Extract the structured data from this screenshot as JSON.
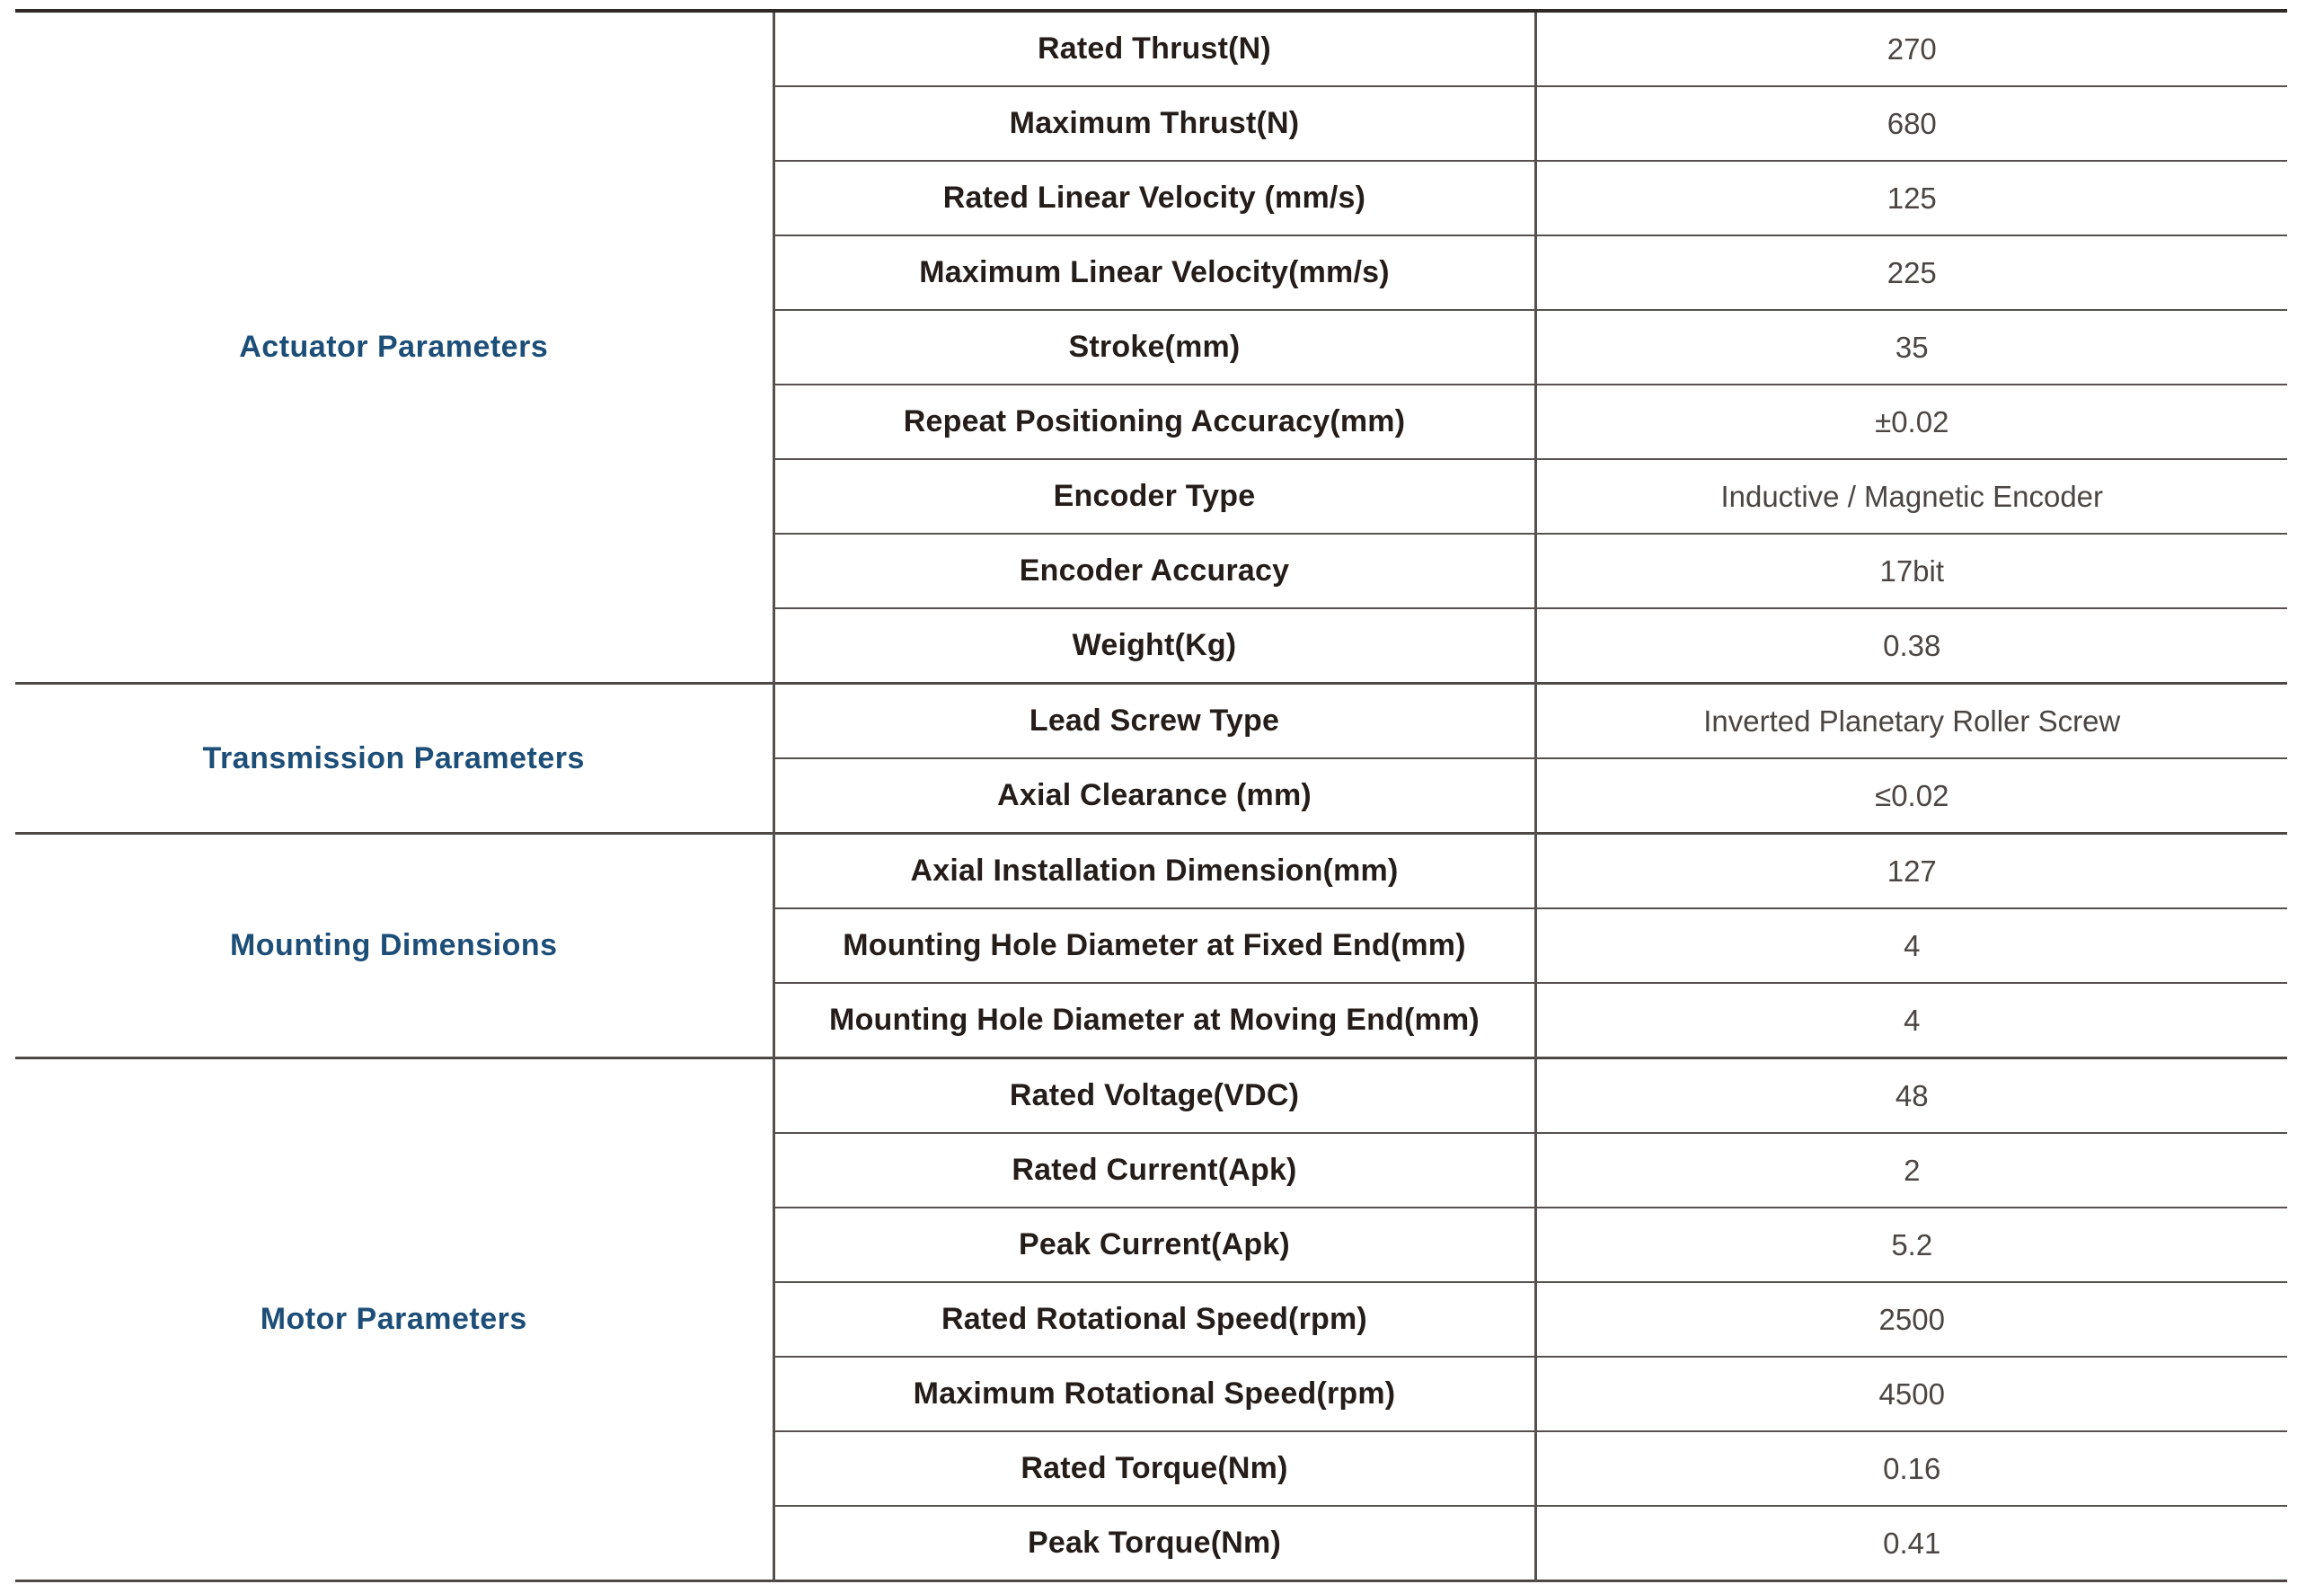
{
  "table": {
    "name": "actuator-specification-table",
    "columns": [
      "category",
      "parameter",
      "value"
    ],
    "sections": [
      {
        "category": "Actuator Parameters",
        "rows": [
          {
            "param": "Rated Thrust(N)",
            "value": "270"
          },
          {
            "param": "Maximum Thrust(N)",
            "value": "680"
          },
          {
            "param": "Rated Linear Velocity (mm/s)",
            "value": "125"
          },
          {
            "param": "Maximum Linear Velocity(mm/s)",
            "value": "225"
          },
          {
            "param": "Stroke(mm)",
            "value": "35"
          },
          {
            "param": "Repeat Positioning Accuracy(mm)",
            "value": "±0.02"
          },
          {
            "param": "Encoder Type",
            "value": "Inductive / Magnetic Encoder"
          },
          {
            "param": "Encoder Accuracy",
            "value": "17bit"
          },
          {
            "param": "Weight(Kg)",
            "value": "0.38"
          }
        ]
      },
      {
        "category": "Transmission Parameters",
        "rows": [
          {
            "param": "Lead Screw Type",
            "value": "Inverted Planetary Roller Screw"
          },
          {
            "param": "Axial Clearance (mm)",
            "value": "≤0.02"
          }
        ]
      },
      {
        "category": "Mounting Dimensions",
        "rows": [
          {
            "param": "Axial Installation Dimension(mm)",
            "value": "127"
          },
          {
            "param": "Mounting Hole Diameter at Fixed End(mm)",
            "value": "4"
          },
          {
            "param": "Mounting Hole Diameter at Moving End(mm)",
            "value": "4"
          }
        ]
      },
      {
        "category": "Motor Parameters",
        "rows": [
          {
            "param": "Rated Voltage(VDC)",
            "value": "48"
          },
          {
            "param": "Rated Current(Apk)",
            "value": "2"
          },
          {
            "param": "Peak Current(Apk)",
            "value": "5.2"
          },
          {
            "param": "Rated Rotational Speed(rpm)",
            "value": "2500"
          },
          {
            "param": "Maximum Rotational Speed(rpm)",
            "value": "4500"
          },
          {
            "param": "Rated Torque(Nm)",
            "value": "0.16"
          },
          {
            "param": "Peak Torque(Nm)",
            "value": "0.41"
          }
        ]
      }
    ],
    "colors": {
      "category_text": "#1d4e78",
      "param_text": "#241d19",
      "value_text": "#4b4643",
      "grid_line": "#56514e",
      "section_line": "#4d4845",
      "outer_border": "#2e2925",
      "background": "#ffffff"
    }
  }
}
